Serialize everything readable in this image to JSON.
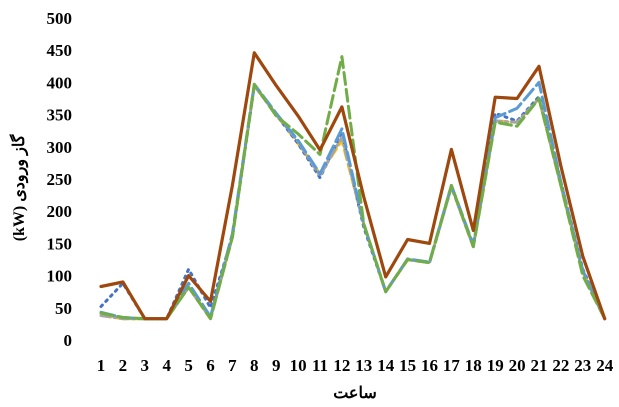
{
  "chart_data": {
    "type": "line",
    "title": "",
    "xlabel": "ساعت",
    "ylabel": "(kW) گاز ورودی",
    "ylim": [
      0,
      500
    ],
    "yticks": [
      0,
      50,
      100,
      150,
      200,
      250,
      300,
      350,
      400,
      450,
      500
    ],
    "categories": [
      "1",
      "2",
      "3",
      "4",
      "5",
      "6",
      "7",
      "8",
      "9",
      "10",
      "11",
      "12",
      "13",
      "14",
      "15",
      "16",
      "17",
      "18",
      "19",
      "20",
      "21",
      "22",
      "23",
      "24"
    ],
    "grid": false,
    "legend": "none",
    "series": [
      {
        "color": "#ffc000",
        "dash": "10,5",
        "values": [
          38,
          33,
          33,
          33,
          82,
          33,
          160,
          395,
          350,
          305,
          258,
          310,
          180,
          75,
          125,
          120,
          238,
          145,
          340,
          338,
          375,
          240,
          105,
          33
        ]
      },
      {
        "color": "#4472c4",
        "dash": "2,5",
        "values": [
          52,
          88,
          33,
          33,
          110,
          50,
          160,
          395,
          350,
          305,
          252,
          322,
          175,
          75,
          125,
          120,
          238,
          145,
          352,
          340,
          378,
          245,
          110,
          33
        ]
      },
      {
        "color": "#a5a5a5",
        "dash": "9,4,2,4",
        "values": [
          38,
          33,
          33,
          33,
          82,
          33,
          160,
          395,
          350,
          308,
          255,
          315,
          180,
          75,
          125,
          120,
          238,
          145,
          340,
          338,
          375,
          240,
          105,
          33
        ]
      },
      {
        "color": "#5b9bd5",
        "dash": "14,5",
        "values": [
          43,
          35,
          33,
          33,
          88,
          36,
          165,
          397,
          352,
          310,
          258,
          328,
          180,
          75,
          126,
          121,
          240,
          148,
          345,
          360,
          400,
          245,
          108,
          33
        ]
      },
      {
        "color": "#70ad47",
        "dash": "12,5",
        "values": [
          42,
          35,
          33,
          33,
          82,
          33,
          160,
          397,
          348,
          320,
          288,
          440,
          180,
          75,
          125,
          120,
          240,
          145,
          338,
          332,
          375,
          240,
          100,
          33
        ]
      },
      {
        "color": "#9e480e",
        "dash": "",
        "values": [
          83,
          90,
          33,
          33,
          100,
          60,
          240,
          446,
          395,
          348,
          295,
          362,
          222,
          98,
          156,
          150,
          296,
          170,
          377,
          375,
          425,
          270,
          130,
          33
        ]
      }
    ]
  }
}
